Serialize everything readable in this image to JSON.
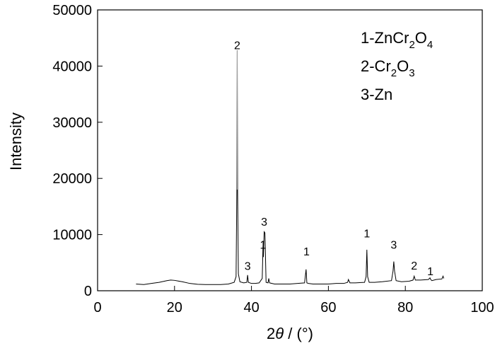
{
  "chart_data": {
    "type": "line",
    "xlabel_prefix": "2",
    "xlabel_theta": "θ",
    "xlabel_suffix": " / (°)",
    "ylabel": "Intensity",
    "xlim": [
      0,
      100
    ],
    "ylim": [
      0,
      50000
    ],
    "x_ticks": [
      0,
      20,
      40,
      60,
      80,
      100
    ],
    "y_ticks": [
      0,
      10000,
      20000,
      30000,
      40000,
      50000
    ],
    "grid": false,
    "legend": {
      "placement": "top-right",
      "items": [
        {
          "prefix": "1-ZnCr",
          "sub1": "2",
          "mid": "O",
          "sub2": "4"
        },
        {
          "prefix": "2-Cr",
          "sub1": "2",
          "mid": "O",
          "sub2": "3"
        },
        {
          "prefix": "3-Zn",
          "sub1": "",
          "mid": "",
          "sub2": ""
        }
      ]
    },
    "peak_labels": [
      {
        "label": "2",
        "x": 36.3,
        "y": 43000
      },
      {
        "label": "3",
        "x": 39.0,
        "y": 3700
      },
      {
        "label": "1",
        "x": 43.0,
        "y": 7500
      },
      {
        "label": "3",
        "x": 43.3,
        "y": 11600
      },
      {
        "label": "1",
        "x": 54.3,
        "y": 6300
      },
      {
        "label": "1",
        "x": 70.0,
        "y": 9500
      },
      {
        "label": "3",
        "x": 77.0,
        "y": 7500
      },
      {
        "label": "2",
        "x": 82.3,
        "y": 3800
      },
      {
        "label": "1",
        "x": 86.5,
        "y": 2800
      }
    ],
    "series": [
      {
        "values_x": [
          10,
          12,
          14,
          16,
          18,
          19,
          20,
          22,
          24,
          26,
          28,
          30,
          32,
          34,
          35.5,
          36.0,
          36.2,
          36.3,
          36.4,
          36.6,
          37.0,
          38.0,
          38.8,
          39.0,
          39.2,
          40.0,
          41.0,
          42.0,
          42.8,
          43.0,
          43.1,
          43.3,
          43.5,
          43.8,
          44.3,
          44.5,
          44.7,
          46,
          48,
          50,
          52,
          53.8,
          54.2,
          54.4,
          54.8,
          56,
          58,
          60,
          62,
          64,
          65.0,
          65.2,
          65.6,
          67,
          69.4,
          69.8,
          70.0,
          70.2,
          70.6,
          72,
          74,
          76.4,
          76.8,
          77.0,
          77.2,
          77.6,
          79,
          81,
          82.0,
          82.3,
          82.6,
          84,
          86,
          86.4,
          86.6,
          86.9,
          88,
          89.5,
          89.8,
          90
        ],
        "values_y": [
          1200,
          1100,
          1300,
          1500,
          1800,
          1900,
          1850,
          1600,
          1300,
          1150,
          1100,
          1100,
          1100,
          1200,
          1500,
          2500,
          18000,
          42800,
          17800,
          3000,
          1600,
          1400,
          1500,
          2800,
          1500,
          1300,
          1300,
          1400,
          2200,
          8000,
          6000,
          10500,
          10300,
          1500,
          1400,
          2200,
          1400,
          1200,
          1200,
          1200,
          1300,
          1400,
          3800,
          1400,
          1300,
          1200,
          1200,
          1200,
          1300,
          1300,
          1500,
          2000,
          1400,
          1400,
          1500,
          2500,
          7300,
          2500,
          1500,
          1500,
          1600,
          1800,
          3500,
          5200,
          3500,
          1800,
          1600,
          1700,
          1900,
          2600,
          1900,
          1900,
          2000,
          2300,
          2000,
          1800,
          2000,
          2100,
          2600,
          2200
        ]
      }
    ]
  }
}
